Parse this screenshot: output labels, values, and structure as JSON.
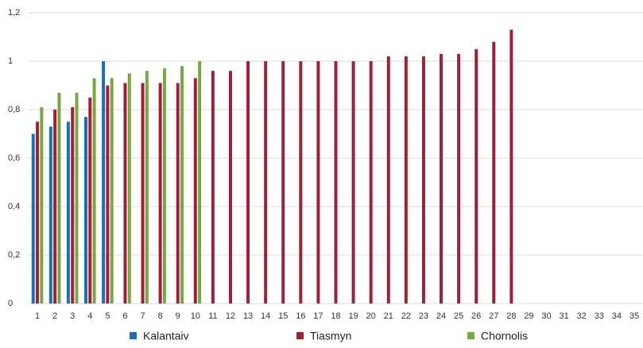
{
  "chart_data": {
    "type": "bar",
    "categories": [
      "1",
      "2",
      "3",
      "4",
      "5",
      "6",
      "7",
      "8",
      "9",
      "10",
      "11",
      "12",
      "13",
      "14",
      "15",
      "16",
      "17",
      "18",
      "19",
      "20",
      "21",
      "22",
      "23",
      "24",
      "25",
      "26",
      "27",
      "28",
      "29",
      "30",
      "31",
      "32",
      "33",
      "34",
      "35"
    ],
    "series": [
      {
        "name": "Kalantaiv",
        "color": "#1f6eb5",
        "values": [
          0.7,
          0.73,
          0.75,
          0.77,
          1.0,
          null,
          null,
          null,
          null,
          null,
          null,
          null,
          null,
          null,
          null,
          null,
          null,
          null,
          null,
          null,
          null,
          null,
          null,
          null,
          null,
          null,
          null,
          null,
          null,
          null,
          null,
          null,
          null,
          null,
          null
        ]
      },
      {
        "name": "Tiasmyn",
        "color": "#9b2335",
        "values": [
          0.75,
          0.8,
          0.81,
          0.85,
          0.9,
          0.91,
          0.91,
          0.91,
          0.91,
          0.93,
          0.96,
          0.96,
          1.0,
          1.0,
          1.0,
          1.0,
          1.0,
          1.0,
          1.0,
          1.0,
          1.02,
          1.02,
          1.02,
          1.03,
          1.03,
          1.05,
          1.08,
          1.13,
          null,
          null,
          null,
          null,
          null,
          null,
          null
        ]
      },
      {
        "name": "Chornolis",
        "color": "#78a844",
        "values": [
          0.81,
          0.87,
          0.87,
          0.93,
          0.93,
          0.95,
          0.96,
          0.97,
          0.98,
          1.0,
          null,
          null,
          null,
          null,
          null,
          null,
          null,
          null,
          null,
          null,
          null,
          null,
          null,
          null,
          null,
          null,
          null,
          null,
          null,
          null,
          null,
          null,
          null,
          null,
          null
        ]
      }
    ],
    "ylim": [
      0,
      1.2
    ],
    "yticks": [
      0,
      {
        "value": 0.2,
        "label": "0,2"
      },
      {
        "value": 0.4,
        "label": "0,4"
      },
      {
        "value": 0.6,
        "label": "0,6"
      },
      {
        "value": 0.8,
        "label": "0,8"
      },
      1,
      {
        "value": 1.2,
        "label": "1,2"
      }
    ],
    "grid": true,
    "legend": "bottom"
  }
}
